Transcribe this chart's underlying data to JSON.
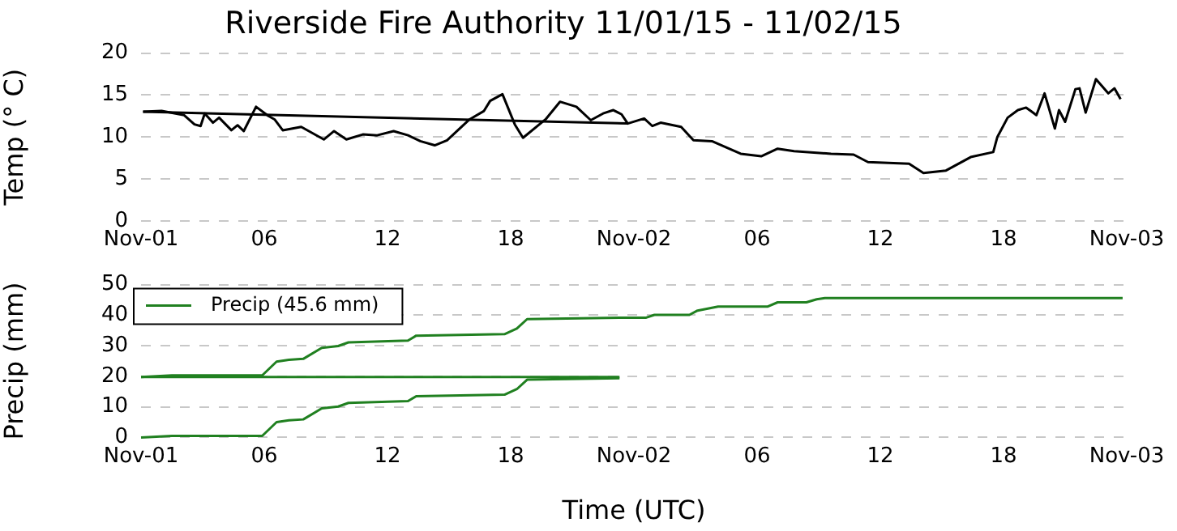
{
  "chart_data": [
    {
      "type": "line",
      "title": "Riverside Fire Authority 11/01/15 - 11/02/15",
      "ylabel": "Temp (° C)",
      "xlim": [
        "--11-01T00:00",
        "--11-03T00:00"
      ],
      "ylim": [
        0,
        20
      ],
      "yticks": [
        0,
        5,
        10,
        15,
        20
      ],
      "xticks": [
        {
          "value": "--11-01T00:00",
          "label": "Nov-01"
        },
        {
          "value": "--11-01T06:00",
          "label": "06"
        },
        {
          "value": "--11-01T12:00",
          "label": "12"
        },
        {
          "value": "--11-01T18:00",
          "label": "18"
        },
        {
          "value": "--11-02T00:00",
          "label": "Nov-02"
        },
        {
          "value": "--11-02T06:00",
          "label": "06"
        },
        {
          "value": "--11-02T12:00",
          "label": "12"
        },
        {
          "value": "--11-02T18:00",
          "label": "18"
        },
        {
          "value": "--11-03T00:00",
          "label": "Nov-03"
        }
      ],
      "grid": "y",
      "legend": false,
      "series": [
        {
          "color": "#000000",
          "x": [
            "--11-01T00:06",
            "--11-01T01:00",
            "--11-01T02:06",
            "--11-01T02:36",
            "--11-01T02:54",
            "--11-01T03:06",
            "--11-01T03:30",
            "--11-01T03:48",
            "--11-01T04:24",
            "--11-01T04:42",
            "--11-01T05:00",
            "--11-01T05:36",
            "--11-01T06:12",
            "--11-01T06:30",
            "--11-01T06:54",
            "--11-01T07:48",
            "--11-01T08:54",
            "--11-01T09:24",
            "--11-01T10:00",
            "--11-01T10:48",
            "--11-01T11:30",
            "--11-01T12:18",
            "--11-01T13:00",
            "--11-01T13:36",
            "--11-01T14:18",
            "--11-01T14:54",
            "--11-01T16:00",
            "--11-01T16:42",
            "--11-01T17:00",
            "--11-01T17:36",
            "--11-01T18:12",
            "--11-01T18:36",
            "--11-01T19:42",
            "--11-01T20:24",
            "--11-01T21:12",
            "--11-01T21:54",
            "--11-01T22:30",
            "--11-01T23:00",
            "--11-01T23:24",
            "--11-01T23:42",
            "--11-02T00:30",
            "--11-02T00:54",
            "--11-02T01:18",
            "--11-02T02:18",
            "--11-02T02:54",
            "--11-02T03:48",
            "--11-02T05:12",
            "--11-02T06:12",
            "--11-02T07:00",
            "--11-02T07:48",
            "--11-02T09:36",
            "--11-02T10:42",
            "--11-02T11:24",
            "--11-02T13:24",
            "--11-02T14:06",
            "--11-02T15:12",
            "--11-02T16:24",
            "--11-02T17:30",
            "--11-02T17:42",
            "--11-02T18:12",
            "--11-02T18:42",
            "--11-02T19:06",
            "--11-02T19:36",
            "--11-02T20:00",
            "--11-02T20:30",
            "--11-02T20:42",
            "--11-02T21:00",
            "--11-02T21:30",
            "--11-02T21:42",
            "--11-02T22:00",
            "--11-02T22:30",
            "--11-02T23:06",
            "--11-02T23:24",
            "--11-02T23:42"
          ],
          "values": [
            13.0,
            13.1,
            12.6,
            11.5,
            11.3,
            12.8,
            11.7,
            12.3,
            10.8,
            11.4,
            10.7,
            13.6,
            12.5,
            12.1,
            10.8,
            11.2,
            9.7,
            10.7,
            9.7,
            10.3,
            10.2,
            10.7,
            10.2,
            9.5,
            9.0,
            9.6,
            12.1,
            13.1,
            14.3,
            15.1,
            11.5,
            9.9,
            12.1,
            14.2,
            13.6,
            12.0,
            12.8,
            13.2,
            12.7,
            11.6,
            12.2,
            11.3,
            11.7,
            11.2,
            9.6,
            9.5,
            8.0,
            7.7,
            8.6,
            8.3,
            8.0,
            7.9,
            7.0,
            6.8,
            5.7,
            6.0,
            7.6,
            8.2,
            10.0,
            12.3,
            13.2,
            13.5,
            12.6,
            15.2,
            11.0,
            13.2,
            11.8,
            15.7,
            15.8,
            12.9,
            16.9,
            15.2,
            15.8,
            14.5
          ]
        },
        {
          "color": "#000000",
          "x": [
            "--11-01T00:06",
            "--11-01T23:42"
          ],
          "values": [
            13.0,
            11.6
          ]
        }
      ]
    },
    {
      "type": "line",
      "ylabel": "Precip (mm)",
      "xlabel": "Time (UTC)",
      "xlim": [
        "--11-01T00:00",
        "--11-03T00:00"
      ],
      "ylim": [
        0,
        50
      ],
      "yticks": [
        0,
        10,
        20,
        30,
        40,
        50
      ],
      "xticks": [
        {
          "value": "--11-01T00:00",
          "label": "Nov-01"
        },
        {
          "value": "--11-01T06:00",
          "label": "06"
        },
        {
          "value": "--11-01T12:00",
          "label": "12"
        },
        {
          "value": "--11-01T18:00",
          "label": "18"
        },
        {
          "value": "--11-02T00:00",
          "label": "Nov-02"
        },
        {
          "value": "--11-02T06:00",
          "label": "06"
        },
        {
          "value": "--11-02T12:00",
          "label": "12"
        },
        {
          "value": "--11-02T18:00",
          "label": "18"
        },
        {
          "value": "--11-03T00:00",
          "label": "Nov-03"
        }
      ],
      "grid": "y",
      "legend": "top left",
      "series": [
        {
          "name": "Precip (45.6 mm)",
          "color": "#208020",
          "x": [
            "--11-01T00:00",
            "--11-01T01:30",
            "--11-01T05:54",
            "--11-01T06:36",
            "--11-01T07:12",
            "--11-01T07:54",
            "--11-01T08:48",
            "--11-01T09:36",
            "--11-01T10:06",
            "--11-01T13:00",
            "--11-01T13:24",
            "--11-01T17:42",
            "--11-01T18:18",
            "--11-01T18:48",
            "--11-01T23:18",
            "--11-02T00:36",
            "--11-02T01:00",
            "--11-02T02:42",
            "--11-02T03:06",
            "--11-02T04:06",
            "--11-02T06:30",
            "--11-02T07:00",
            "--11-02T08:24",
            "--11-02T08:54",
            "--11-02T09:18",
            "--11-02T23:48"
          ],
          "values": [
            19.8,
            20.3,
            20.3,
            24.8,
            25.4,
            25.7,
            29.3,
            29.9,
            31.1,
            31.7,
            33.3,
            33.8,
            35.6,
            38.7,
            39.2,
            39.2,
            40.1,
            40.1,
            41.5,
            42.8,
            42.8,
            44.2,
            44.2,
            45.2,
            45.6,
            45.6
          ]
        },
        {
          "color": "#208020",
          "x": [
            "--11-01T00:00",
            "--11-01T01:30",
            "--11-01T05:54",
            "--11-01T06:36",
            "--11-01T07:12",
            "--11-01T07:54",
            "--11-01T08:48",
            "--11-01T09:36",
            "--11-01T10:06",
            "--11-01T13:00",
            "--11-01T13:24",
            "--11-01T17:42",
            "--11-01T18:18",
            "--11-01T18:48",
            "--11-01T23:18"
          ],
          "values": [
            0,
            0.5,
            0.5,
            5.0,
            5.6,
            5.9,
            9.5,
            10.1,
            11.3,
            11.9,
            13.5,
            14.0,
            15.8,
            18.9,
            19.4
          ]
        },
        {
          "color": "#208020",
          "x": [
            "--11-01T00:00",
            "--11-01T23:18"
          ],
          "values": [
            19.8,
            19.8
          ]
        }
      ]
    }
  ]
}
